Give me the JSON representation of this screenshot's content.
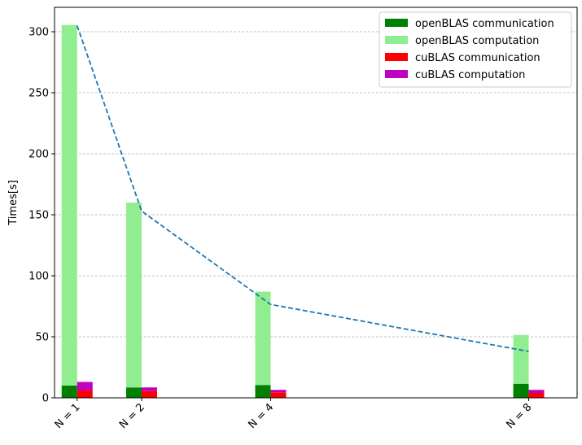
{
  "chart_data": {
    "type": "bar",
    "title": "",
    "xlabel": "",
    "ylabel": "Times[s]",
    "ylim": [
      0,
      320
    ],
    "yticks": [
      0,
      50,
      100,
      150,
      200,
      250,
      300
    ],
    "grid": "horizontal dashed",
    "legend_position": "top-right",
    "x_tick_rotation": 45,
    "categories": [
      {
        "label": "N = 1",
        "x": 1
      },
      {
        "label": "N = 2",
        "x": 2
      },
      {
        "label": "N = 4",
        "x": 4
      },
      {
        "label": "N = 8",
        "x": 8
      }
    ],
    "stacks": [
      {
        "group": "openBLAS",
        "series": [
          {
            "name": "openBLAS communication",
            "color": "#008000",
            "values": [
              10,
              8.5,
              10.5,
              11.5
            ]
          },
          {
            "name": "openBLAS computation",
            "color": "#90ee90",
            "values": [
              295.5,
              151.5,
              76.5,
              40
            ]
          }
        ]
      },
      {
        "group": "cuBLAS",
        "series": [
          {
            "name": "cuBLAS communication",
            "color": "#ff0000",
            "values": [
              6,
              5.5,
              4.5,
              4
            ]
          },
          {
            "name": "cuBLAS computation",
            "color": "#bf00bf",
            "values": [
              7,
              3,
              2,
              2.5
            ]
          }
        ]
      }
    ],
    "line": {
      "style": "dashed",
      "color": "#1f77b4",
      "x": [
        1,
        2,
        4,
        8
      ],
      "y": [
        305,
        153,
        76.5,
        38
      ]
    }
  }
}
